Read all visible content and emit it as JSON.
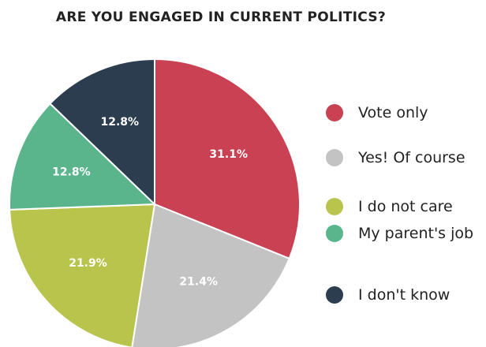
{
  "chart_data": {
    "type": "pie",
    "title": "ARE YOU ENGAGED IN CURRENT POLITICS?",
    "categories": [
      "Vote only",
      "Yes! Of course",
      "I do not care",
      "My  parent's job",
      "I don't know"
    ],
    "values": [
      31.1,
      21.4,
      21.9,
      12.8,
      12.8
    ],
    "value_labels": [
      "31.1%",
      "21.4%",
      "21.9%",
      "12.8%",
      "12.8%"
    ],
    "colors": [
      "#c94152",
      "#c3c3c3",
      "#b8c44b",
      "#5ab58d",
      "#2b3d4f"
    ],
    "legend": "right"
  }
}
